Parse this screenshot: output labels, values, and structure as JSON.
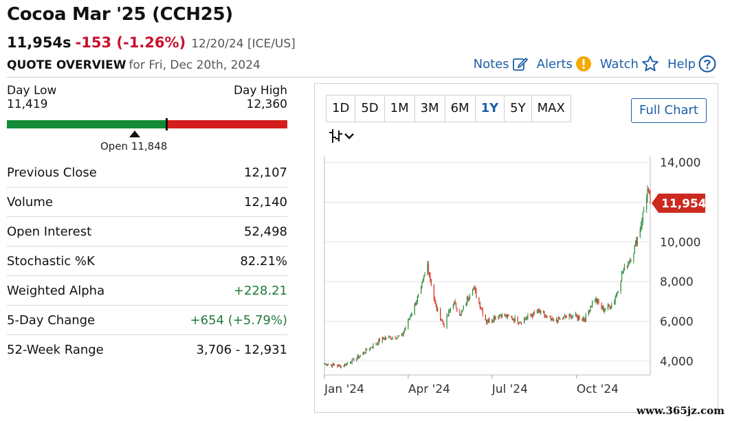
{
  "header": {
    "title": "Cocoa Mar '25 (CCH25)",
    "last": "11,954s",
    "change": "-153 (-1.26%)",
    "meta": "12/20/24 [ICE/US]",
    "overview_label": "QUOTE OVERVIEW",
    "overview_for": "for Fri, Dec 20th, 2024"
  },
  "links": {
    "notes": "Notes",
    "alerts": "Alerts",
    "watch": "Watch",
    "help": "Help"
  },
  "day_range": {
    "low_label": "Day Low",
    "high_label": "Day High",
    "low": "11,419",
    "high": "12,360",
    "low_value": 11419,
    "high_value": 12360,
    "last_value": 11954,
    "open_value": 11848,
    "open_label": "Open 11,848",
    "colors": {
      "up": "#138a36",
      "down": "#d31d1d"
    }
  },
  "stats": [
    {
      "label": "Previous Close",
      "value": "12,107",
      "tone": ""
    },
    {
      "label": "Volume",
      "value": "12,140",
      "tone": ""
    },
    {
      "label": "Open Interest",
      "value": "52,498",
      "tone": ""
    },
    {
      "label": "Stochastic %K",
      "value": "82.21%",
      "tone": ""
    },
    {
      "label": "Weighted Alpha",
      "value": "+228.21",
      "tone": "pos"
    },
    {
      "label": "5-Day Change",
      "value": "+654 (+5.79%)",
      "tone": "pos"
    },
    {
      "label": "52-Week Range",
      "value": "3,706 - 12,931",
      "tone": ""
    }
  ],
  "chart_controls": {
    "periods": [
      "1D",
      "5D",
      "1M",
      "3M",
      "6M",
      "1Y",
      "5Y",
      "MAX"
    ],
    "active_period": "1Y",
    "full_chart": "Full Chart",
    "chart_type_icon": "candlestick-icon"
  },
  "chart_data": {
    "type": "candlestick",
    "x_ticks": [
      "Jan '24",
      "Apr '24",
      "Jul '24",
      "Oct '24"
    ],
    "y_ticks": [
      4000,
      6000,
      8000,
      10000,
      12000,
      14000
    ],
    "y_tick_labels": [
      "4,000",
      "6,000",
      "8,000",
      "10,000",
      "",
      "14,000"
    ],
    "ylim": [
      3300,
      14300
    ],
    "grid": true,
    "last_label": "11,954",
    "last_value": 11954,
    "colors": {
      "up": "#2e8b3e",
      "down": "#d9342b",
      "last_badge": "#cc2a1f"
    },
    "series_keypoints": [
      {
        "t": "2024-01-01",
        "v": 3860
      },
      {
        "t": "2024-01-20",
        "v": 3740
      },
      {
        "t": "2024-02-05",
        "v": 4150
      },
      {
        "t": "2024-02-20",
        "v": 4700
      },
      {
        "t": "2024-03-05",
        "v": 5150
      },
      {
        "t": "2024-03-25",
        "v": 5250
      },
      {
        "t": "2024-04-15",
        "v": 7600
      },
      {
        "t": "2024-04-22",
        "v": 8900
      },
      {
        "t": "2024-05-01",
        "v": 6700
      },
      {
        "t": "2024-05-10",
        "v": 5800
      },
      {
        "t": "2024-05-20",
        "v": 7000
      },
      {
        "t": "2024-05-28",
        "v": 6300
      },
      {
        "t": "2024-06-10",
        "v": 7800
      },
      {
        "t": "2024-06-25",
        "v": 6000
      },
      {
        "t": "2024-07-10",
        "v": 6350
      },
      {
        "t": "2024-08-01",
        "v": 6000
      },
      {
        "t": "2024-08-20",
        "v": 6500
      },
      {
        "t": "2024-09-05",
        "v": 6000
      },
      {
        "t": "2024-09-25",
        "v": 6300
      },
      {
        "t": "2024-10-10",
        "v": 6100
      },
      {
        "t": "2024-10-20",
        "v": 7200
      },
      {
        "t": "2024-10-30",
        "v": 6600
      },
      {
        "t": "2024-11-10",
        "v": 6900
      },
      {
        "t": "2024-11-20",
        "v": 8500
      },
      {
        "t": "2024-12-01",
        "v": 9400
      },
      {
        "t": "2024-12-10",
        "v": 10900
      },
      {
        "t": "2024-12-17",
        "v": 12600
      },
      {
        "t": "2024-12-20",
        "v": 11954
      }
    ]
  },
  "watermark": "www.365jz.com"
}
